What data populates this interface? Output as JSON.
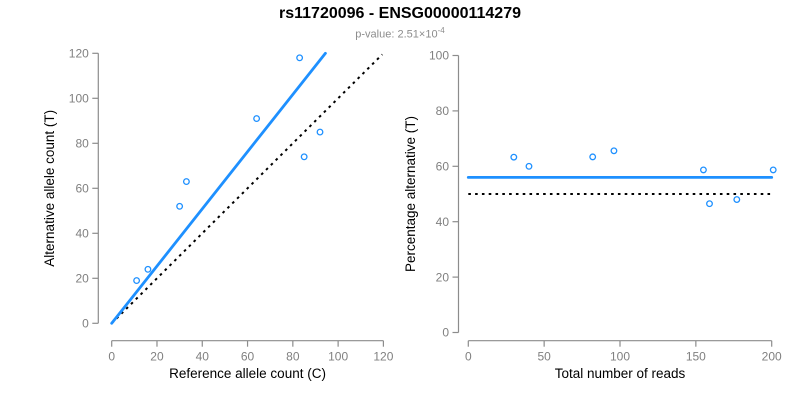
{
  "header": {
    "title": "rs11720096 - ENSG00000114279",
    "p_value_prefix": "p-value: ",
    "p_value_mantissa": "2.51",
    "p_value_times": "×",
    "p_value_base": "10",
    "p_value_exponent": "-4"
  },
  "colors": {
    "accent_blue": "#1E90FF",
    "reference_black": "#000000",
    "axis_gray": "#8C8C8C",
    "tick_label_gray": "#808080",
    "label_black": "#000000",
    "background": "#FFFFFF"
  },
  "chart_data": [
    {
      "id": "allele-count-scatter",
      "type": "scatter",
      "xlabel": "Reference allele count (C)",
      "ylabel": "Alternative allele count (T)",
      "xlim": [
        0,
        120
      ],
      "ylim": [
        0,
        120
      ],
      "xticks": [
        0,
        20,
        40,
        60,
        80,
        100,
        120
      ],
      "yticks": [
        0,
        20,
        40,
        60,
        80,
        100,
        120
      ],
      "points": [
        {
          "x": 11,
          "y": 19
        },
        {
          "x": 16,
          "y": 24
        },
        {
          "x": 30,
          "y": 52
        },
        {
          "x": 33,
          "y": 63
        },
        {
          "x": 64,
          "y": 91
        },
        {
          "x": 83,
          "y": 118
        },
        {
          "x": 85,
          "y": 74
        },
        {
          "x": 92,
          "y": 85
        }
      ],
      "fit_line": {
        "style": "solid",
        "color_key": "accent_blue",
        "x1": 0,
        "y1": 0,
        "x2": 94.4,
        "y2": 120
      },
      "reference_line": {
        "style": "dotted",
        "color_key": "reference_black",
        "x1": 0,
        "y1": 0,
        "x2": 119.5,
        "y2": 119.5
      }
    },
    {
      "id": "percentage-scatter",
      "type": "scatter",
      "xlabel": "Total number of reads",
      "ylabel": "Percentage alternative (T)",
      "xlim": [
        0,
        200
      ],
      "ylim": [
        0,
        100
      ],
      "xticks": [
        0,
        50,
        100,
        150,
        200
      ],
      "yticks": [
        0,
        20,
        40,
        60,
        80,
        100
      ],
      "points": [
        {
          "x": 30,
          "y": 63.3
        },
        {
          "x": 40,
          "y": 60.0
        },
        {
          "x": 82,
          "y": 63.4
        },
        {
          "x": 96,
          "y": 65.6
        },
        {
          "x": 155,
          "y": 58.7
        },
        {
          "x": 201,
          "y": 58.7
        },
        {
          "x": 159,
          "y": 46.5
        },
        {
          "x": 177,
          "y": 48.0
        }
      ],
      "fit_line": {
        "style": "solid",
        "color_key": "accent_blue",
        "x1": 0,
        "y1": 56,
        "x2": 200,
        "y2": 56
      },
      "reference_line": {
        "style": "dotted",
        "color_key": "reference_black",
        "x1": 0,
        "y1": 50,
        "x2": 200,
        "y2": 50
      }
    }
  ]
}
